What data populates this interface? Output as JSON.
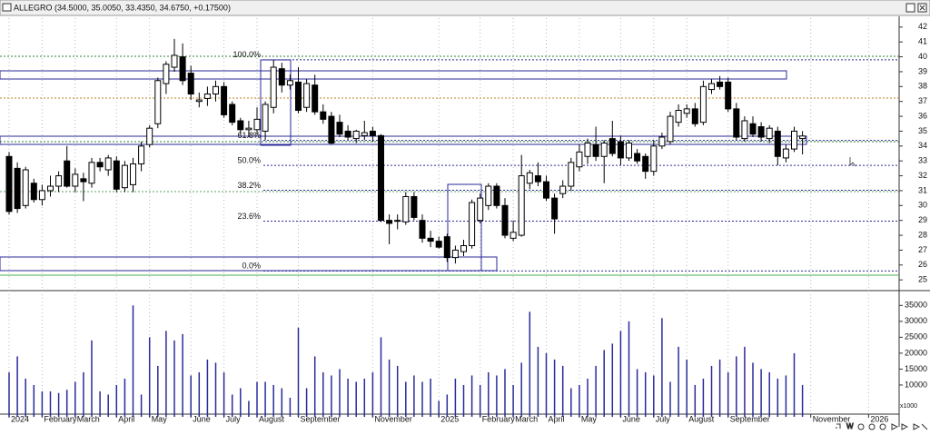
{
  "chart_data": {
    "type": "candlestick",
    "title": "ALLEGRO (34.5000, 35.0050, 33.4350, 34.6750, +0.17500)",
    "categories": [
      "2024",
      null,
      null,
      null,
      "February",
      null,
      null,
      null,
      "March",
      null,
      null,
      null,
      null,
      "April",
      null,
      null,
      null,
      "May",
      null,
      null,
      null,
      null,
      "June",
      null,
      null,
      null,
      "July",
      null,
      null,
      null,
      "August",
      null,
      null,
      null,
      null,
      "September",
      null,
      null,
      null,
      null,
      null,
      null,
      null,
      null,
      "November",
      null,
      null,
      null,
      null,
      null,
      null,
      null,
      "2025",
      null,
      null,
      null,
      null,
      "February",
      null,
      null,
      null,
      "March",
      null,
      null,
      null,
      "April",
      null,
      null,
      null,
      "May",
      null,
      null,
      null,
      null,
      "June",
      null,
      null,
      null,
      "July",
      null,
      null,
      null,
      "August",
      null,
      null,
      null,
      null,
      "September",
      null,
      null,
      null,
      null,
      null,
      null,
      null,
      null,
      null,
      "November",
      null,
      null,
      null,
      null,
      null,
      null,
      "2026"
    ],
    "open": [
      33.3,
      32.5,
      30.0,
      31.5,
      30.4,
      31.0,
      31.3,
      33.0,
      31.3,
      31.8,
      31.5,
      32.9,
      32.4,
      33.0,
      31.2,
      31.4,
      32.8,
      34.1,
      35.5,
      38.2,
      39.3,
      40.0,
      38.9,
      37.0,
      37.2,
      37.5,
      38.0,
      36.8,
      35.7,
      35.1,
      35.1,
      35.0,
      36.6,
      39.2,
      38.1,
      38.3,
      36.6,
      38.1,
      36.3,
      36.0,
      35.6,
      35.0,
      34.5,
      34.7,
      35.0,
      34.7,
      29.0,
      29.0,
      28.9,
      30.6,
      29.0,
      27.8,
      27.6,
      27.9,
      26.5,
      26.9,
      27.3,
      29.0,
      30.0,
      31.3,
      30.0,
      27.8,
      28.0,
      31.5,
      32.0,
      31.6,
      30.5,
      30.8,
      31.3,
      32.6,
      33.3,
      34.1,
      33.3,
      34.5,
      34.3,
      33.2,
      33.5,
      33.3,
      32.3,
      34.0,
      34.3,
      35.6,
      36.2,
      36.5,
      35.6,
      37.8,
      38.3,
      38.3,
      36.5,
      34.5,
      35.5,
      35.3,
      34.5,
      35.0,
      33.2,
      33.8,
      34.5,
      null,
      null,
      null,
      null,
      null,
      null,
      null,
      null
    ],
    "high": [
      33.6,
      32.9,
      32.6,
      31.8,
      31.4,
      32.0,
      32.3,
      34.0,
      32.5,
      32.2,
      33.2,
      33.2,
      33.4,
      33.3,
      33.0,
      33.2,
      34.3,
      35.4,
      38.6,
      39.7,
      41.2,
      40.9,
      39.4,
      37.6,
      38.0,
      38.4,
      38.3,
      37.0,
      35.9,
      35.7,
      36.6,
      37.0,
      39.8,
      39.6,
      38.8,
      39.3,
      38.5,
      38.8,
      36.8,
      36.3,
      36.1,
      35.4,
      35.1,
      35.7,
      35.3,
      34.8,
      29.4,
      29.4,
      30.9,
      30.9,
      29.4,
      28.3,
      27.9,
      28.1,
      27.3,
      27.7,
      30.4,
      30.8,
      31.5,
      31.5,
      30.5,
      29.0,
      33.4,
      32.4,
      32.9,
      32.0,
      30.8,
      31.7,
      33.2,
      34.1,
      34.5,
      35.3,
      34.4,
      35.7,
      34.7,
      34.4,
      33.8,
      33.5,
      34.4,
      34.9,
      36.3,
      36.8,
      36.8,
      36.9,
      38.4,
      38.5,
      38.7,
      38.6,
      36.9,
      36.0,
      36.0,
      35.6,
      35.4,
      35.3,
      34.1,
      35.3,
      35.005,
      null,
      null,
      null,
      null,
      null,
      null,
      null,
      null
    ],
    "low": [
      29.4,
      29.5,
      29.8,
      30.2,
      30.0,
      30.6,
      30.9,
      31.2,
      30.9,
      30.3,
      31.2,
      32.3,
      32.0,
      30.9,
      30.9,
      30.9,
      32.3,
      33.9,
      35.2,
      37.5,
      39.0,
      38.1,
      37.1,
      36.6,
      36.7,
      37.0,
      35.9,
      35.4,
      34.8,
      34.6,
      34.8,
      34.4,
      36.2,
      37.6,
      37.8,
      36.2,
      36.3,
      36.1,
      35.5,
      34.1,
      34.6,
      34.4,
      34.2,
      34.4,
      34.3,
      28.9,
      27.4,
      28.4,
      28.7,
      29.0,
      27.5,
      27.2,
      27.1,
      26.2,
      26.1,
      26.6,
      27.1,
      28.8,
      29.7,
      29.8,
      27.8,
      27.6,
      27.9,
      31.1,
      31.3,
      30.3,
      28.1,
      30.5,
      31.0,
      32.3,
      32.8,
      33.0,
      31.5,
      33.3,
      32.7,
      33.0,
      32.8,
      31.8,
      32.0,
      33.8,
      34.1,
      35.3,
      35.9,
      35.3,
      35.4,
      37.5,
      37.8,
      36.3,
      34.4,
      34.3,
      34.6,
      34.3,
      34.2,
      32.7,
      32.9,
      33.6,
      33.435,
      null,
      null,
      null,
      null,
      null,
      null,
      null,
      null
    ],
    "close": [
      29.6,
      29.8,
      32.4,
      30.4,
      31.0,
      31.3,
      32.0,
      31.3,
      32.1,
      31.6,
      32.9,
      32.6,
      33.2,
      31.1,
      32.7,
      32.8,
      34.0,
      35.2,
      38.4,
      39.5,
      40.1,
      38.4,
      37.5,
      37.1,
      37.5,
      38.0,
      36.1,
      35.6,
      35.1,
      35.2,
      35.8,
      36.8,
      39.3,
      38.1,
      38.4,
      36.4,
      38.2,
      36.3,
      35.8,
      34.2,
      34.8,
      34.6,
      35.0,
      34.9,
      34.7,
      29.0,
      28.8,
      29.0,
      30.6,
      29.2,
      27.8,
      27.6,
      27.2,
      26.5,
      27.0,
      27.3,
      30.2,
      30.5,
      31.3,
      30.0,
      28.0,
      28.2,
      32.0,
      32.2,
      31.6,
      30.5,
      29.1,
      31.3,
      32.9,
      33.6,
      34.2,
      33.3,
      34.2,
      33.5,
      33.2,
      34.2,
      33.0,
      32.3,
      34.0,
      34.6,
      36.0,
      36.4,
      36.5,
      35.5,
      38.0,
      38.2,
      38.0,
      36.5,
      34.6,
      35.7,
      34.8,
      34.6,
      35.2,
      33.3,
      33.8,
      35.0,
      34.675,
      null,
      null,
      null,
      null,
      null,
      null,
      null,
      null
    ],
    "volume": [
      14000,
      19000,
      12000,
      10000,
      8000,
      8000,
      7500,
      8500,
      11000,
      14000,
      24000,
      8000,
      7000,
      10000,
      12000,
      35000,
      7000,
      25000,
      16000,
      27000,
      24000,
      26000,
      13000,
      14000,
      18000,
      17000,
      14000,
      7000,
      9000,
      5000,
      11000,
      11000,
      10000,
      9000,
      6000,
      28000,
      9000,
      19000,
      14000,
      13000,
      15000,
      12000,
      11000,
      12000,
      14000,
      25000,
      18000,
      16000,
      11000,
      13000,
      11000,
      12000,
      5000,
      7000,
      12000,
      10000,
      13000,
      10000,
      14000,
      13000,
      15000,
      10000,
      17000,
      33000,
      22000,
      20000,
      18000,
      16000,
      9000,
      10000,
      12000,
      16000,
      21000,
      23000,
      27000,
      30000,
      15000,
      14000,
      13000,
      31000,
      11000,
      22000,
      18000,
      10000,
      12000,
      16000,
      18000,
      14000,
      19000,
      22000,
      17000,
      15000,
      14000,
      12000,
      13000,
      20000,
      10000,
      null,
      null,
      null,
      null,
      null,
      null,
      null,
      null
    ],
    "ylim": [
      24.4,
      42.6
    ],
    "yticks": [
      25,
      26,
      27,
      28,
      29,
      30,
      31,
      32,
      33,
      34,
      35,
      36,
      37,
      38,
      39,
      40,
      41,
      42
    ],
    "volume_ylim": [
      0,
      38800
    ],
    "volume_yticks": [
      10000,
      15000,
      20000,
      25000,
      30000,
      35000
    ],
    "volume_unit_label": "x1000",
    "up_color": "#ffffff",
    "down_color": "#000000",
    "volume_color": "#2a2a9a",
    "grid": true,
    "fibonacci": {
      "low": 25.6,
      "high": 39.8,
      "color": "#2a2a9a",
      "levels": [
        {
          "value": 100,
          "label": "100.0%"
        },
        {
          "value": 61.8,
          "label": "61.8%"
        },
        {
          "value": 50,
          "label": "50.0%"
        },
        {
          "value": 38.2,
          "label": "38.2%"
        },
        {
          "value": 23.6,
          "label": "23.6%"
        },
        {
          "value": 0,
          "label": "0.0%"
        }
      ]
    }
  }
}
